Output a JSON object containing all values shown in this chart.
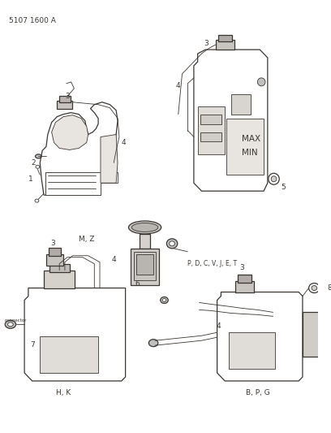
{
  "background_color": "#f5f5f0",
  "line_color": "#3a3530",
  "text_color": "#3a3530",
  "fig_width": 4.08,
  "fig_height": 5.33,
  "dpi": 100,
  "title": "5107 1600 A",
  "label_MZ": "M, Z",
  "label_HK": "H, K",
  "label_BPG": "B, P, G",
  "label_PDCVJET": "P, D, C, V, J, E, T",
  "label_MAX": "MAX",
  "label_MIN": "MIN"
}
